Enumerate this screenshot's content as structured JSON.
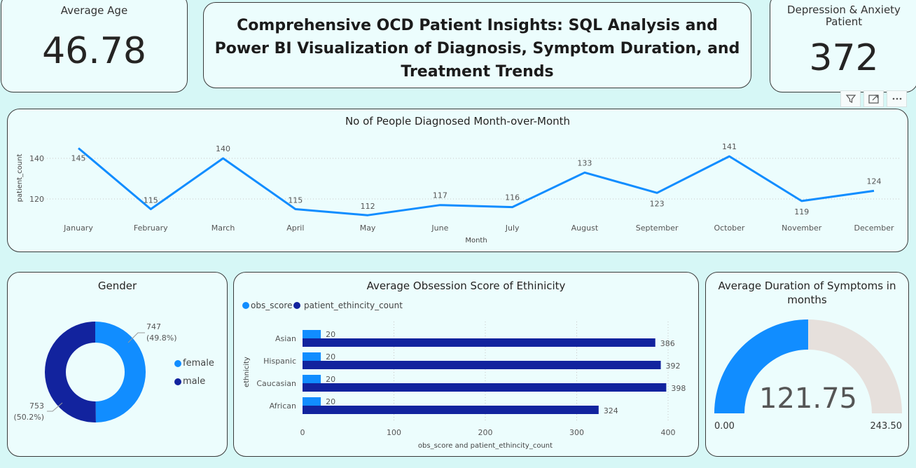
{
  "kpi_age": {
    "label": "Average Age",
    "value": "46.78"
  },
  "title": "Comprehensive OCD Patient Insights: SQL Analysis and Power BI Visualization of Diagnosis, Symptom Duration, and Treatment Trends",
  "kpi_depression": {
    "label": "Depression & Anxiety Patient",
    "value": "372"
  },
  "toolbar": {
    "icons": [
      "filter-icon",
      "focus-mode-icon",
      "more-options-icon"
    ]
  },
  "colors": {
    "primary_blue": "#118dff",
    "dark_blue": "#12239e",
    "gauge_track": "#e6e0dc",
    "background": "#d6f7f6",
    "card": "#ecfdfd"
  },
  "chart_data": [
    {
      "type": "line",
      "title": "No of People Diagnosed Month-over-Month",
      "xlabel": "Month",
      "ylabel": "patient_count",
      "x": [
        "January",
        "February",
        "March",
        "April",
        "May",
        "June",
        "July",
        "August",
        "September",
        "October",
        "November",
        "December"
      ],
      "values": [
        145,
        115,
        140,
        115,
        112,
        117,
        116,
        133,
        123,
        141,
        119,
        124
      ],
      "yticks": [
        120,
        140
      ],
      "ylim": [
        108,
        148
      ],
      "grid": true
    },
    {
      "type": "pie",
      "title": "Gender",
      "categories": [
        "female",
        "male"
      ],
      "values": [
        747,
        753
      ],
      "percent_labels": [
        "(49.8%)",
        "(50.2%)"
      ],
      "colors": [
        "#118dff",
        "#12239e"
      ],
      "donut": true,
      "legend": "right"
    },
    {
      "type": "bar",
      "orientation": "horizontal",
      "title": "Average Obsession Score of Ethinicity",
      "categories": [
        "Asian",
        "Hispanic",
        "Caucasian",
        "African"
      ],
      "series": [
        {
          "name": "obs_score",
          "values": [
            20,
            20,
            20,
            20
          ],
          "color": "#118dff"
        },
        {
          "name": "patient_ethincity_count",
          "values": [
            386,
            392,
            398,
            324
          ],
          "color": "#12239e"
        }
      ],
      "xlabel": "obs_score and patient_ethincity_count",
      "ylabel": "ethnicity",
      "xticks": [
        0,
        100,
        200,
        300,
        400
      ],
      "xlim": [
        0,
        400
      ],
      "legend": "top-left"
    },
    {
      "type": "gauge",
      "title": "Average Duration of Symptoms in months",
      "value": 121.75,
      "value_label": "121.75",
      "min": 0,
      "max": 243.5,
      "min_label": "0.00",
      "max_label": "243.50"
    }
  ]
}
